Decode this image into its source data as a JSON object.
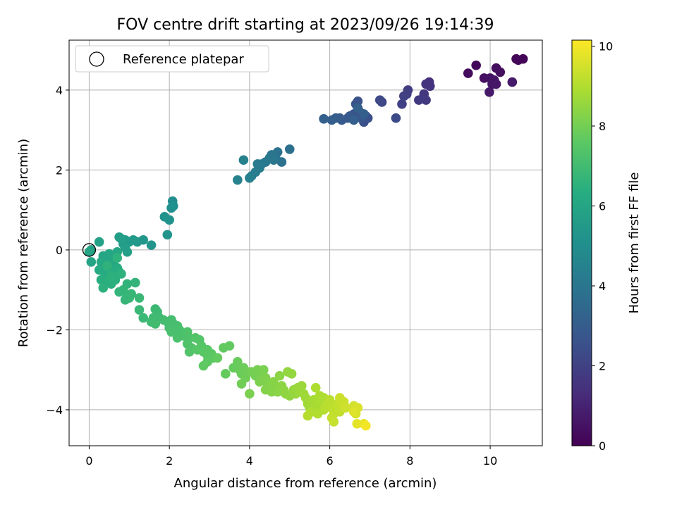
{
  "chart_data": {
    "type": "scatter",
    "title": "FOV centre drift starting at 2023/09/26 19:14:39",
    "xlabel": "Angular distance from reference (arcmin)",
    "ylabel": "Rotation from reference (arcmin)",
    "xlim": [
      -0.5,
      11.3
    ],
    "ylim": [
      -4.9,
      5.25
    ],
    "xticks": [
      0,
      2,
      4,
      6,
      8,
      10
    ],
    "yticks": [
      -4,
      -2,
      0,
      2,
      4
    ],
    "grid": true,
    "legend": {
      "placement": "top-left",
      "entries": [
        "Reference platepar"
      ]
    },
    "reference_point": {
      "x": 0,
      "y": 0
    },
    "colorbar": {
      "label": "Hours from first FF file",
      "colormap": "viridis",
      "range": [
        0,
        10.15
      ],
      "ticks": [
        0,
        2,
        4,
        6,
        8,
        10
      ]
    },
    "points": [
      {
        "x": 10.65,
        "y": 4.78,
        "c": 0.05
      },
      {
        "x": 10.82,
        "y": 4.78,
        "c": 0.1
      },
      {
        "x": 10.7,
        "y": 4.75,
        "c": 0.15
      },
      {
        "x": 9.65,
        "y": 4.62,
        "c": 0.2
      },
      {
        "x": 9.45,
        "y": 4.42,
        "c": 0.3
      },
      {
        "x": 10.15,
        "y": 4.55,
        "c": 0.35
      },
      {
        "x": 10.25,
        "y": 4.45,
        "c": 0.4
      },
      {
        "x": 9.85,
        "y": 4.3,
        "c": 0.45
      },
      {
        "x": 10.0,
        "y": 4.3,
        "c": 0.5
      },
      {
        "x": 10.1,
        "y": 4.25,
        "c": 0.55
      },
      {
        "x": 10.05,
        "y": 4.15,
        "c": 0.6
      },
      {
        "x": 10.15,
        "y": 4.15,
        "c": 0.65
      },
      {
        "x": 9.98,
        "y": 3.95,
        "c": 0.7
      },
      {
        "x": 10.55,
        "y": 4.2,
        "c": 0.75
      },
      {
        "x": 8.48,
        "y": 4.2,
        "c": 1.4
      },
      {
        "x": 8.4,
        "y": 4.15,
        "c": 1.5
      },
      {
        "x": 8.5,
        "y": 4.1,
        "c": 1.55
      },
      {
        "x": 8.35,
        "y": 3.9,
        "c": 1.65
      },
      {
        "x": 8.4,
        "y": 3.75,
        "c": 1.7
      },
      {
        "x": 8.22,
        "y": 3.75,
        "c": 1.75
      },
      {
        "x": 7.95,
        "y": 4.0,
        "c": 1.85
      },
      {
        "x": 7.92,
        "y": 3.9,
        "c": 1.9
      },
      {
        "x": 7.85,
        "y": 3.85,
        "c": 1.95
      },
      {
        "x": 7.8,
        "y": 3.65,
        "c": 2.0
      },
      {
        "x": 7.3,
        "y": 3.7,
        "c": 2.2
      },
      {
        "x": 7.25,
        "y": 3.75,
        "c": 2.25
      },
      {
        "x": 7.65,
        "y": 3.3,
        "c": 2.3
      },
      {
        "x": 6.9,
        "y": 3.35,
        "c": 2.45
      },
      {
        "x": 6.95,
        "y": 3.3,
        "c": 2.5
      },
      {
        "x": 6.85,
        "y": 3.2,
        "c": 2.55
      },
      {
        "x": 6.65,
        "y": 3.65,
        "c": 2.6
      },
      {
        "x": 6.7,
        "y": 3.72,
        "c": 2.62
      },
      {
        "x": 6.6,
        "y": 3.4,
        "c": 2.65
      },
      {
        "x": 6.55,
        "y": 3.3,
        "c": 2.7
      },
      {
        "x": 6.75,
        "y": 3.45,
        "c": 2.72
      },
      {
        "x": 6.78,
        "y": 3.3,
        "c": 2.75
      },
      {
        "x": 6.5,
        "y": 3.35,
        "c": 2.8
      },
      {
        "x": 6.45,
        "y": 3.3,
        "c": 2.85
      },
      {
        "x": 6.3,
        "y": 3.25,
        "c": 2.9
      },
      {
        "x": 6.25,
        "y": 3.3,
        "c": 2.95
      },
      {
        "x": 6.15,
        "y": 3.3,
        "c": 3.0
      },
      {
        "x": 6.05,
        "y": 3.25,
        "c": 3.05
      },
      {
        "x": 6.6,
        "y": 3.25,
        "c": 3.08
      },
      {
        "x": 6.85,
        "y": 3.4,
        "c": 3.1
      },
      {
        "x": 6.7,
        "y": 3.55,
        "c": 3.12
      },
      {
        "x": 5.85,
        "y": 3.28,
        "c": 3.15
      },
      {
        "x": 5.0,
        "y": 2.52,
        "c": 3.75
      },
      {
        "x": 4.8,
        "y": 2.2,
        "c": 3.8
      },
      {
        "x": 4.7,
        "y": 2.45,
        "c": 3.85
      },
      {
        "x": 4.65,
        "y": 2.3,
        "c": 3.9
      },
      {
        "x": 4.55,
        "y": 2.38,
        "c": 3.95
      },
      {
        "x": 4.5,
        "y": 2.3,
        "c": 4.0
      },
      {
        "x": 4.6,
        "y": 2.25,
        "c": 4.05
      },
      {
        "x": 4.4,
        "y": 2.2,
        "c": 4.1
      },
      {
        "x": 4.3,
        "y": 2.15,
        "c": 4.15
      },
      {
        "x": 4.25,
        "y": 2.05,
        "c": 4.2
      },
      {
        "x": 4.2,
        "y": 2.15,
        "c": 4.25
      },
      {
        "x": 4.15,
        "y": 1.95,
        "c": 4.3
      },
      {
        "x": 4.05,
        "y": 1.85,
        "c": 4.35
      },
      {
        "x": 4.0,
        "y": 1.8,
        "c": 4.4
      },
      {
        "x": 3.85,
        "y": 2.25,
        "c": 4.45
      },
      {
        "x": 3.7,
        "y": 1.75,
        "c": 4.5
      },
      {
        "x": 2.08,
        "y": 1.22,
        "c": 5.0
      },
      {
        "x": 2.1,
        "y": 1.1,
        "c": 5.05
      },
      {
        "x": 2.05,
        "y": 1.05,
        "c": 5.1
      },
      {
        "x": 1.88,
        "y": 0.83,
        "c": 5.15
      },
      {
        "x": 2.0,
        "y": 0.75,
        "c": 5.2
      },
      {
        "x": 1.95,
        "y": 0.38,
        "c": 5.25
      },
      {
        "x": 1.55,
        "y": 0.12,
        "c": 5.3
      },
      {
        "x": 1.35,
        "y": 0.25,
        "c": 5.35
      },
      {
        "x": 1.2,
        "y": 0.2,
        "c": 5.4
      },
      {
        "x": 1.1,
        "y": 0.25,
        "c": 5.45
      },
      {
        "x": 1.0,
        "y": 0.2,
        "c": 5.5
      },
      {
        "x": 0.9,
        "y": 0.25,
        "c": 5.55
      },
      {
        "x": 0.85,
        "y": 0.15,
        "c": 5.6
      },
      {
        "x": 0.75,
        "y": 0.32,
        "c": 5.65
      },
      {
        "x": 0.8,
        "y": 0.28,
        "c": 5.68
      },
      {
        "x": 0.9,
        "y": 0.05,
        "c": 5.7
      },
      {
        "x": 0.95,
        "y": -0.05,
        "c": 5.75
      },
      {
        "x": 0.25,
        "y": 0.2,
        "c": 5.8
      },
      {
        "x": 0.05,
        "y": 0.0,
        "c": 5.85
      },
      {
        "x": 0.0,
        "y": -0.05,
        "c": 5.9
      },
      {
        "x": 0.05,
        "y": -0.3,
        "c": 5.95
      },
      {
        "x": 0.35,
        "y": -0.15,
        "c": 5.98
      },
      {
        "x": 0.4,
        "y": -0.2,
        "c": 6.0
      },
      {
        "x": 0.5,
        "y": -0.1,
        "c": 6.02
      },
      {
        "x": 0.65,
        "y": -0.15,
        "c": 6.05
      },
      {
        "x": 0.7,
        "y": -0.05,
        "c": 6.08
      },
      {
        "x": 0.55,
        "y": -0.25,
        "c": 6.1
      },
      {
        "x": 0.6,
        "y": -0.35,
        "c": 6.12
      },
      {
        "x": 0.3,
        "y": -0.3,
        "c": 6.15
      },
      {
        "x": 0.35,
        "y": -0.45,
        "c": 6.18
      },
      {
        "x": 0.45,
        "y": -0.5,
        "c": 6.2
      },
      {
        "x": 0.25,
        "y": -0.5,
        "c": 6.22
      },
      {
        "x": 0.4,
        "y": -0.6,
        "c": 6.25
      },
      {
        "x": 0.5,
        "y": -0.7,
        "c": 6.28
      },
      {
        "x": 0.6,
        "y": -0.55,
        "c": 6.3
      },
      {
        "x": 0.7,
        "y": -0.45,
        "c": 6.32
      },
      {
        "x": 0.75,
        "y": -0.55,
        "c": 6.35
      },
      {
        "x": 0.3,
        "y": -0.75,
        "c": 6.38
      },
      {
        "x": 0.4,
        "y": -0.8,
        "c": 6.4
      },
      {
        "x": 0.55,
        "y": -0.85,
        "c": 6.42
      },
      {
        "x": 0.65,
        "y": -0.75,
        "c": 6.45
      },
      {
        "x": 0.35,
        "y": -0.95,
        "c": 6.48
      },
      {
        "x": 0.55,
        "y": -0.65,
        "c": 6.5
      },
      {
        "x": 0.8,
        "y": -0.6,
        "c": 6.52
      },
      {
        "x": 0.45,
        "y": -0.4,
        "c": 6.55
      },
      {
        "x": 0.7,
        "y": -0.2,
        "c": 6.57
      },
      {
        "x": 0.95,
        "y": -0.85,
        "c": 6.6
      },
      {
        "x": 1.15,
        "y": -0.82,
        "c": 6.62
      },
      {
        "x": 0.75,
        "y": -1.05,
        "c": 6.65
      },
      {
        "x": 0.85,
        "y": -1.0,
        "c": 6.68
      },
      {
        "x": 0.95,
        "y": -1.15,
        "c": 6.7
      },
      {
        "x": 0.9,
        "y": -1.25,
        "c": 6.72
      },
      {
        "x": 1.05,
        "y": -1.1,
        "c": 6.75
      },
      {
        "x": 1.0,
        "y": -1.2,
        "c": 6.78
      },
      {
        "x": 1.25,
        "y": -1.2,
        "c": 6.8
      },
      {
        "x": 1.25,
        "y": -1.5,
        "c": 6.82
      },
      {
        "x": 1.35,
        "y": -1.7,
        "c": 6.85
      },
      {
        "x": 1.65,
        "y": -1.48,
        "c": 6.88
      },
      {
        "x": 1.7,
        "y": -1.55,
        "c": 6.9
      },
      {
        "x": 1.75,
        "y": -1.7,
        "c": 6.92
      },
      {
        "x": 1.6,
        "y": -1.7,
        "c": 6.95
      },
      {
        "x": 1.55,
        "y": -1.8,
        "c": 6.98
      },
      {
        "x": 1.65,
        "y": -1.85,
        "c": 7.0
      },
      {
        "x": 1.85,
        "y": -1.75,
        "c": 7.02
      },
      {
        "x": 1.95,
        "y": -1.8,
        "c": 7.05
      },
      {
        "x": 2.05,
        "y": -1.75,
        "c": 7.08
      },
      {
        "x": 2.1,
        "y": -1.85,
        "c": 7.1
      },
      {
        "x": 2.0,
        "y": -1.95,
        "c": 7.12
      },
      {
        "x": 2.2,
        "y": -1.9,
        "c": 7.15
      },
      {
        "x": 2.25,
        "y": -2.0,
        "c": 7.18
      },
      {
        "x": 2.05,
        "y": -2.05,
        "c": 7.2
      },
      {
        "x": 2.2,
        "y": -2.2,
        "c": 7.22
      },
      {
        "x": 2.35,
        "y": -2.15,
        "c": 7.25
      },
      {
        "x": 2.45,
        "y": -2.05,
        "c": 7.28
      },
      {
        "x": 2.5,
        "y": -2.2,
        "c": 7.3
      },
      {
        "x": 2.45,
        "y": -2.35,
        "c": 7.32
      },
      {
        "x": 2.55,
        "y": -2.45,
        "c": 7.35
      },
      {
        "x": 2.5,
        "y": -2.55,
        "c": 7.38
      },
      {
        "x": 2.65,
        "y": -2.2,
        "c": 7.4
      },
      {
        "x": 2.75,
        "y": -2.25,
        "c": 7.42
      },
      {
        "x": 2.8,
        "y": -2.4,
        "c": 7.45
      },
      {
        "x": 2.7,
        "y": -2.5,
        "c": 7.48
      },
      {
        "x": 2.85,
        "y": -2.55,
        "c": 7.5
      },
      {
        "x": 2.95,
        "y": -2.5,
        "c": 7.52
      },
      {
        "x": 2.95,
        "y": -2.65,
        "c": 7.55
      },
      {
        "x": 3.05,
        "y": -2.6,
        "c": 7.58
      },
      {
        "x": 3.1,
        "y": -2.7,
        "c": 7.6
      },
      {
        "x": 2.95,
        "y": -2.8,
        "c": 7.62
      },
      {
        "x": 2.85,
        "y": -2.9,
        "c": 7.65
      },
      {
        "x": 3.35,
        "y": -2.45,
        "c": 7.68
      },
      {
        "x": 3.5,
        "y": -2.4,
        "c": 7.7
      },
      {
        "x": 3.2,
        "y": -2.7,
        "c": 7.72
      },
      {
        "x": 3.4,
        "y": -3.1,
        "c": 7.75
      },
      {
        "x": 3.6,
        "y": -2.95,
        "c": 7.78
      },
      {
        "x": 3.7,
        "y": -2.8,
        "c": 7.8
      },
      {
        "x": 3.75,
        "y": -3.0,
        "c": 7.82
      },
      {
        "x": 3.85,
        "y": -2.95,
        "c": 7.85
      },
      {
        "x": 3.8,
        "y": -3.1,
        "c": 7.88
      },
      {
        "x": 3.95,
        "y": -3.05,
        "c": 7.9
      },
      {
        "x": 3.9,
        "y": -3.2,
        "c": 7.92
      },
      {
        "x": 3.8,
        "y": -3.35,
        "c": 7.95
      },
      {
        "x": 4.05,
        "y": -3.05,
        "c": 7.98
      },
      {
        "x": 4.15,
        "y": -3.15,
        "c": 8.0
      },
      {
        "x": 4.2,
        "y": -3.0,
        "c": 8.05
      },
      {
        "x": 4.3,
        "y": -3.1,
        "c": 8.08
      },
      {
        "x": 4.35,
        "y": -3.0,
        "c": 8.1
      },
      {
        "x": 4.0,
        "y": -3.6,
        "c": 8.12
      },
      {
        "x": 4.25,
        "y": -3.3,
        "c": 8.15
      },
      {
        "x": 4.4,
        "y": -3.2,
        "c": 8.18
      },
      {
        "x": 4.45,
        "y": -3.35,
        "c": 8.2
      },
      {
        "x": 4.5,
        "y": -3.45,
        "c": 8.22
      },
      {
        "x": 4.4,
        "y": -3.5,
        "c": 8.25
      },
      {
        "x": 4.55,
        "y": -3.55,
        "c": 8.28
      },
      {
        "x": 4.6,
        "y": -3.3,
        "c": 8.3
      },
      {
        "x": 4.65,
        "y": -3.45,
        "c": 8.32
      },
      {
        "x": 4.7,
        "y": -3.55,
        "c": 8.35
      },
      {
        "x": 4.75,
        "y": -3.15,
        "c": 8.38
      },
      {
        "x": 4.8,
        "y": -3.4,
        "c": 8.4
      },
      {
        "x": 4.85,
        "y": -3.5,
        "c": 8.42
      },
      {
        "x": 4.9,
        "y": -3.6,
        "c": 8.45
      },
      {
        "x": 5.0,
        "y": -3.65,
        "c": 8.48
      },
      {
        "x": 4.95,
        "y": -3.05,
        "c": 8.5
      },
      {
        "x": 5.05,
        "y": -3.1,
        "c": 8.52
      },
      {
        "x": 5.1,
        "y": -3.5,
        "c": 8.55
      },
      {
        "x": 5.15,
        "y": -3.6,
        "c": 8.58
      },
      {
        "x": 5.2,
        "y": -3.45,
        "c": 8.6
      },
      {
        "x": 5.25,
        "y": -3.55,
        "c": 8.62
      },
      {
        "x": 5.3,
        "y": -3.4,
        "c": 8.65
      },
      {
        "x": 5.35,
        "y": -3.6,
        "c": 8.68
      },
      {
        "x": 5.4,
        "y": -3.7,
        "c": 8.7
      },
      {
        "x": 5.45,
        "y": -3.85,
        "c": 8.72
      },
      {
        "x": 5.5,
        "y": -3.95,
        "c": 8.75
      },
      {
        "x": 5.55,
        "y": -3.8,
        "c": 8.78
      },
      {
        "x": 5.6,
        "y": -3.75,
        "c": 8.8
      },
      {
        "x": 5.65,
        "y": -3.9,
        "c": 8.82
      },
      {
        "x": 5.7,
        "y": -3.75,
        "c": 8.85
      },
      {
        "x": 5.75,
        "y": -3.65,
        "c": 8.88
      },
      {
        "x": 5.8,
        "y": -3.8,
        "c": 8.9
      },
      {
        "x": 5.85,
        "y": -3.7,
        "c": 8.92
      },
      {
        "x": 5.65,
        "y": -3.45,
        "c": 8.95
      },
      {
        "x": 5.55,
        "y": -4.05,
        "c": 8.98
      },
      {
        "x": 5.7,
        "y": -4.1,
        "c": 9.0
      },
      {
        "x": 5.85,
        "y": -4.0,
        "c": 9.02
      },
      {
        "x": 5.45,
        "y": -4.15,
        "c": 9.05
      },
      {
        "x": 5.9,
        "y": -3.95,
        "c": 9.08
      },
      {
        "x": 5.95,
        "y": -3.85,
        "c": 9.1
      },
      {
        "x": 6.0,
        "y": -3.75,
        "c": 9.12
      },
      {
        "x": 6.05,
        "y": -3.95,
        "c": 9.15
      },
      {
        "x": 6.1,
        "y": -4.1,
        "c": 9.18
      },
      {
        "x": 6.15,
        "y": -4.0,
        "c": 9.2
      },
      {
        "x": 6.2,
        "y": -3.85,
        "c": 9.22
      },
      {
        "x": 6.25,
        "y": -4.05,
        "c": 9.25
      },
      {
        "x": 6.05,
        "y": -4.2,
        "c": 9.28
      },
      {
        "x": 6.1,
        "y": -4.3,
        "c": 9.3
      },
      {
        "x": 6.3,
        "y": -3.9,
        "c": 9.32
      },
      {
        "x": 6.35,
        "y": -3.8,
        "c": 9.35
      },
      {
        "x": 6.25,
        "y": -3.7,
        "c": 9.38
      },
      {
        "x": 6.4,
        "y": -3.95,
        "c": 9.4
      },
      {
        "x": 6.6,
        "y": -3.9,
        "c": 9.5
      },
      {
        "x": 6.65,
        "y": -4.1,
        "c": 9.55
      },
      {
        "x": 6.7,
        "y": -3.95,
        "c": 9.6
      },
      {
        "x": 6.6,
        "y": -4.05,
        "c": 9.65
      },
      {
        "x": 6.68,
        "y": -4.35,
        "c": 9.75
      },
      {
        "x": 6.85,
        "y": -4.35,
        "c": 9.85
      },
      {
        "x": 6.9,
        "y": -4.4,
        "c": 10.0
      }
    ]
  }
}
